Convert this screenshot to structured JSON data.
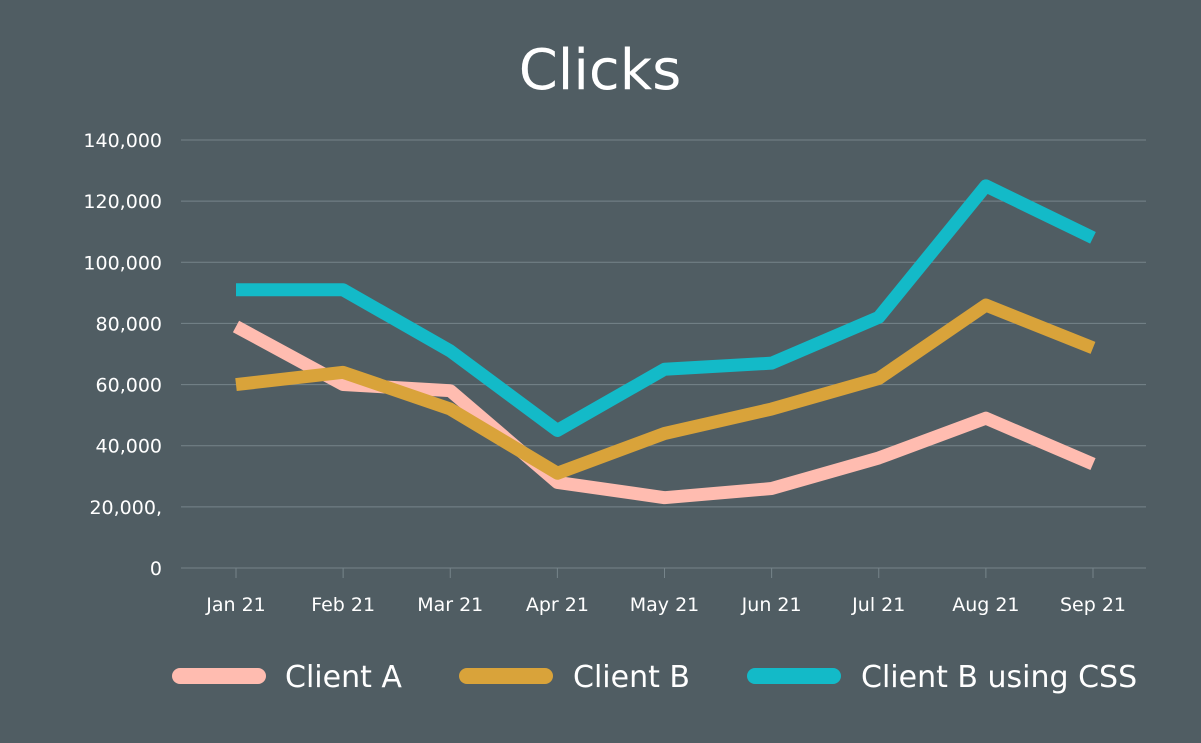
{
  "chart_data": {
    "type": "line",
    "title": "Clicks",
    "xlabel": "",
    "ylabel": "",
    "categories": [
      "Jan 21",
      "Feb 21",
      "Mar 21",
      "Apr 21",
      "May 21",
      "Jun 21",
      "Jul 21",
      "Aug 21",
      "Sep 21"
    ],
    "yticks": [
      {
        "value": 0,
        "label": "0"
      },
      {
        "value": 20000,
        "label": "20,000,"
      },
      {
        "value": 40000,
        "label": "40,000"
      },
      {
        "value": 60000,
        "label": "60,000"
      },
      {
        "value": 80000,
        "label": "80,000"
      },
      {
        "value": 100000,
        "label": "100,000"
      },
      {
        "value": 120000,
        "label": "120,000"
      },
      {
        "value": 140000,
        "label": "140,000"
      }
    ],
    "ylim": [
      0,
      140000
    ],
    "grid": true,
    "legend_position": "bottom",
    "series": [
      {
        "name": "Client A",
        "color": "#ffbcb0",
        "values": [
          79000,
          60000,
          58000,
          28000,
          23000,
          26000,
          36000,
          49000,
          34000
        ]
      },
      {
        "name": "Client B",
        "color": "#d9a33a",
        "values": [
          60000,
          64000,
          52000,
          31000,
          44000,
          52000,
          62000,
          86000,
          72000
        ]
      },
      {
        "name": "Client B using CSS",
        "color": "#13bac8",
        "values": [
          91000,
          91000,
          71000,
          45000,
          65000,
          67000,
          82000,
          125000,
          108000
        ]
      }
    ],
    "colors": {
      "background": "#505d63",
      "grid": "#76848a",
      "text": "#ffffff"
    }
  }
}
